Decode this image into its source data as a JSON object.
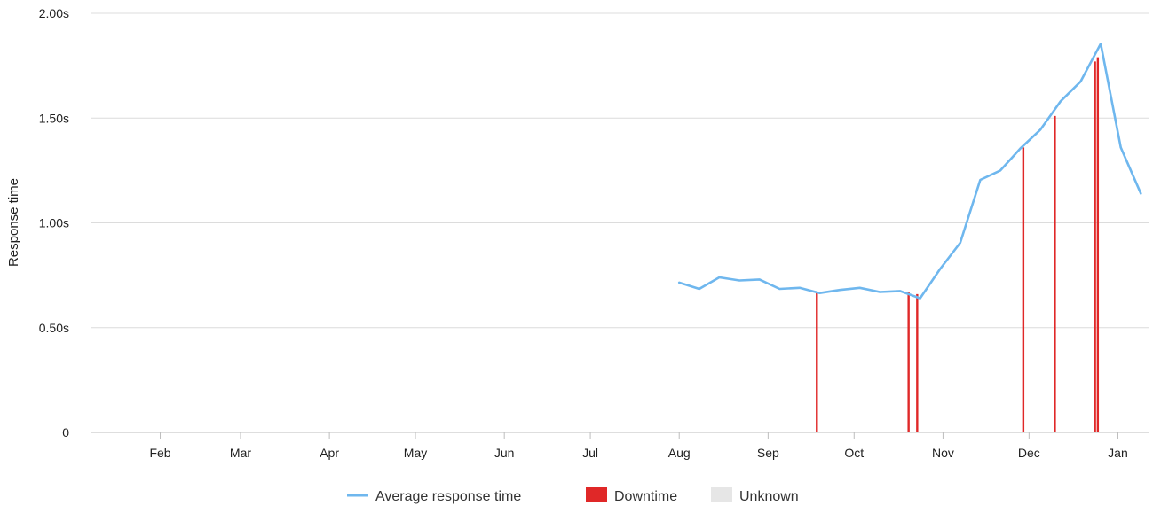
{
  "chart_data": {
    "type": "line",
    "ylabel": "Response time",
    "y_unit": "s",
    "ylim": [
      0,
      2.0
    ],
    "y_ticks": [
      {
        "value": 0,
        "label": "0"
      },
      {
        "value": 0.5,
        "label": "0.50s"
      },
      {
        "value": 1.0,
        "label": "1.00s"
      },
      {
        "value": 1.5,
        "label": "1.50s"
      },
      {
        "value": 2.0,
        "label": "2.00s"
      }
    ],
    "xlim": [
      "2022-01-08",
      "2023-01-12"
    ],
    "x_ticks": [
      {
        "date": "2022-02-01",
        "label": "Feb"
      },
      {
        "date": "2022-03-01",
        "label": "Mar"
      },
      {
        "date": "2022-04-01",
        "label": "Apr"
      },
      {
        "date": "2022-05-01",
        "label": "May"
      },
      {
        "date": "2022-06-01",
        "label": "Jun"
      },
      {
        "date": "2022-07-01",
        "label": "Jul"
      },
      {
        "date": "2022-08-01",
        "label": "Aug"
      },
      {
        "date": "2022-09-01",
        "label": "Sep"
      },
      {
        "date": "2022-10-01",
        "label": "Oct"
      },
      {
        "date": "2022-11-01",
        "label": "Nov"
      },
      {
        "date": "2022-12-01",
        "label": "Dec"
      },
      {
        "date": "2023-01-01",
        "label": "Jan"
      }
    ],
    "grid": true,
    "legend_position": "bottom",
    "series": [
      {
        "name": "Average response time",
        "color": "#6fb7ee",
        "points": [
          {
            "x": "2022-08-01",
            "y": 0.715
          },
          {
            "x": "2022-08-08",
            "y": 0.685
          },
          {
            "x": "2022-08-15",
            "y": 0.74
          },
          {
            "x": "2022-08-22",
            "y": 0.725
          },
          {
            "x": "2022-08-29",
            "y": 0.73
          },
          {
            "x": "2022-09-05",
            "y": 0.685
          },
          {
            "x": "2022-09-12",
            "y": 0.69
          },
          {
            "x": "2022-09-19",
            "y": 0.665
          },
          {
            "x": "2022-09-26",
            "y": 0.68
          },
          {
            "x": "2022-10-03",
            "y": 0.69
          },
          {
            "x": "2022-10-10",
            "y": 0.67
          },
          {
            "x": "2022-10-17",
            "y": 0.675
          },
          {
            "x": "2022-10-24",
            "y": 0.64
          },
          {
            "x": "2022-10-31",
            "y": 0.78
          },
          {
            "x": "2022-11-07",
            "y": 0.905
          },
          {
            "x": "2022-11-14",
            "y": 1.205
          },
          {
            "x": "2022-11-21",
            "y": 1.25
          },
          {
            "x": "2022-11-28",
            "y": 1.355
          },
          {
            "x": "2022-12-05",
            "y": 1.445
          },
          {
            "x": "2022-12-12",
            "y": 1.58
          },
          {
            "x": "2022-12-19",
            "y": 1.675
          },
          {
            "x": "2022-12-26",
            "y": 1.855
          },
          {
            "x": "2023-01-02",
            "y": 1.36
          },
          {
            "x": "2023-01-09",
            "y": 1.14
          }
        ]
      }
    ],
    "downtime": {
      "name": "Downtime",
      "color": "#e02828",
      "events": [
        {
          "x": "2022-09-18",
          "y": 0.67
        },
        {
          "x": "2022-10-20",
          "y": 0.67
        },
        {
          "x": "2022-10-23",
          "y": 0.66
        },
        {
          "x": "2022-11-29",
          "y": 1.36
        },
        {
          "x": "2022-12-10",
          "y": 1.51
        },
        {
          "x": "2022-12-24",
          "y": 1.77
        },
        {
          "x": "2022-12-25",
          "y": 1.79
        }
      ]
    },
    "legend": [
      {
        "name": "Average response time",
        "type": "line",
        "color": "#6fb7ee"
      },
      {
        "name": "Downtime",
        "type": "box",
        "color": "#e02828"
      },
      {
        "name": "Unknown",
        "type": "box",
        "color": "#e6e6e6"
      }
    ]
  }
}
